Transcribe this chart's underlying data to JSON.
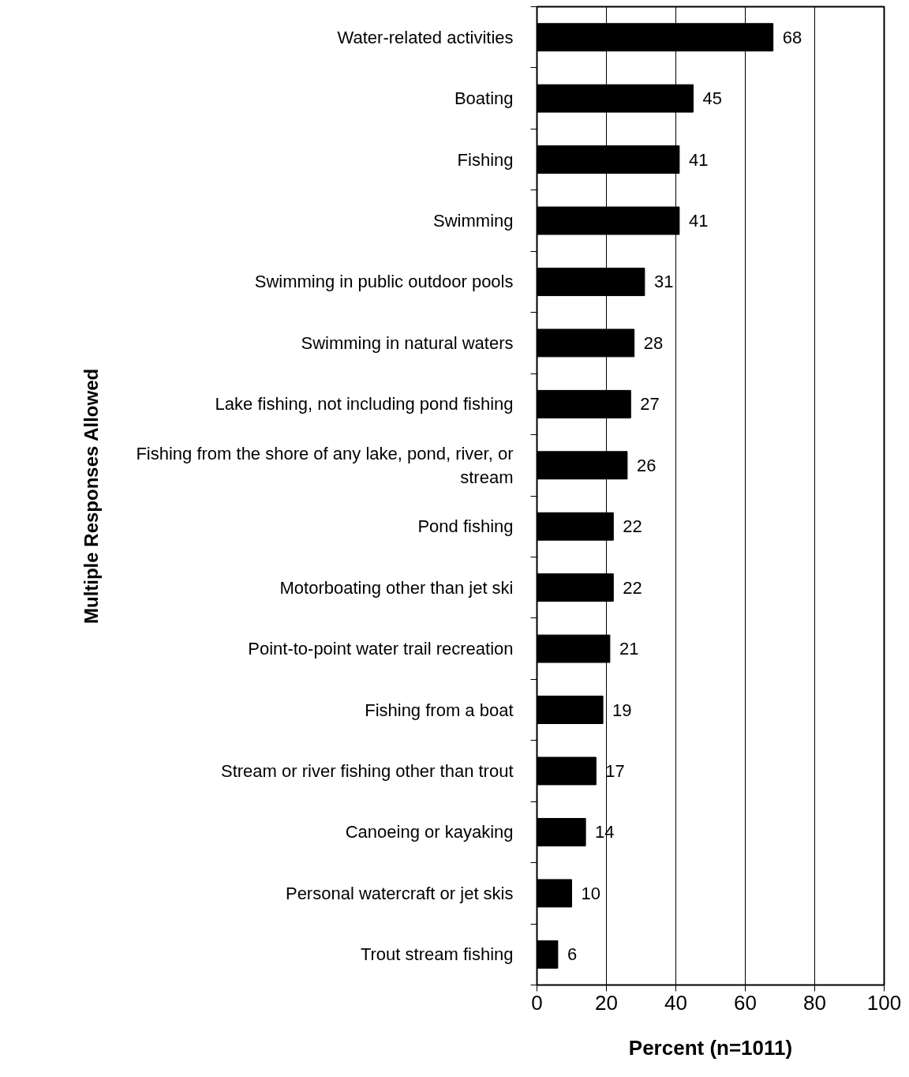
{
  "chart_data": {
    "type": "bar",
    "orientation": "horizontal",
    "xlabel": "Percent (n=1011)",
    "ylabel": "Multiple Responses Allowed",
    "categories": [
      "Water-related activities",
      "Boating",
      "Fishing",
      "Swimming",
      "Swimming in public outdoor pools",
      "Swimming in natural waters",
      "Lake fishing, not including pond fishing",
      "Fishing from the shore of any lake, pond, river, or stream",
      "Pond fishing",
      "Motorboating other than jet ski",
      "Point-to-point water trail recreation",
      "Fishing from a boat",
      "Stream or river fishing other than trout",
      "Canoeing or kayaking",
      "Personal watercraft or jet skis",
      "Trout stream fishing"
    ],
    "values": [
      68,
      45,
      41,
      41,
      31,
      28,
      27,
      26,
      22,
      22,
      21,
      19,
      17,
      14,
      10,
      6
    ],
    "color": "#000000",
    "xlim": [
      0,
      100
    ],
    "xticks": [
      0,
      20,
      40,
      60,
      80,
      100
    ],
    "grid": "x",
    "data_labels": true
  }
}
